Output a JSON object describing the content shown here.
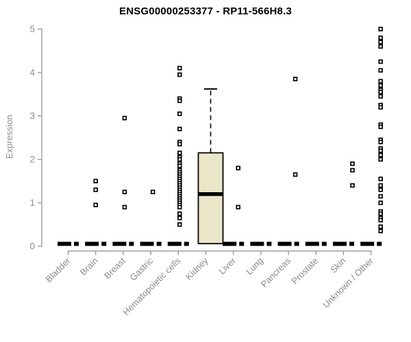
{
  "chart_data": {
    "type": "boxplot",
    "title": "ENSG00000253377 - RP11-566H8.3",
    "ylabel": "Expression",
    "ylim": [
      0,
      5
    ],
    "yticks": [
      0,
      1,
      2,
      3,
      4,
      5
    ],
    "grid": false,
    "legend": false,
    "colors": {
      "box_fill": "#ece6c9",
      "box_stroke": "#000000",
      "median": "#000000",
      "point_stroke": "#000000",
      "point_fill": "#ffffff",
      "zero_dash": "#000000",
      "axis": "#8c8c8c",
      "tick_label": "#8c8c8c",
      "category_label": "#8a8a8a",
      "title": "#000000"
    },
    "categories": [
      {
        "label": "Bladder",
        "dx": 0,
        "zero_dash": true,
        "points": []
      },
      {
        "label": "Brain",
        "dx": 0,
        "zero_dash": true,
        "points": [
          1.5,
          1.3,
          0.95
        ]
      },
      {
        "label": "Breast",
        "dx": 2,
        "zero_dash": true,
        "points": [
          2.95,
          1.25,
          0.9
        ]
      },
      {
        "label": "Gastric",
        "dx": 3,
        "zero_dash": true,
        "points": [
          1.25
        ]
      },
      {
        "label": "Hematopoietic cells",
        "dx": 2,
        "zero_dash": true,
        "points": [
          4.1,
          3.95,
          3.4,
          3.35,
          3.05,
          2.7,
          2.4,
          2.35,
          2.15,
          2.05,
          2.0,
          1.9,
          1.85,
          1.75,
          1.7,
          1.65,
          1.6,
          1.55,
          1.5,
          1.45,
          1.4,
          1.35,
          1.3,
          1.25,
          1.2,
          1.15,
          1.1,
          1.05,
          1.0,
          0.95,
          0.9,
          0.75,
          0.65,
          0.5
        ]
      },
      {
        "label": "Kidney",
        "dx": 7,
        "zero_dash": false,
        "points": [],
        "box": {
          "q1": 0.06,
          "median": 1.2,
          "q3": 2.15,
          "whisker_high": 3.62
        }
      },
      {
        "label": "Liver",
        "dx": 7,
        "zero_dash": true,
        "points": [
          1.8,
          0.9
        ]
      },
      {
        "label": "Lung",
        "dx": 0,
        "zero_dash": true,
        "points": []
      },
      {
        "label": "Pancreas",
        "dx": 10,
        "zero_dash": true,
        "points": [
          3.85,
          1.65
        ]
      },
      {
        "label": "Prostate",
        "dx": 0,
        "zero_dash": true,
        "points": []
      },
      {
        "label": "Skin",
        "dx": 13,
        "zero_dash": true,
        "points": [
          1.9,
          1.75,
          1.4
        ]
      },
      {
        "label": "Unknown / Other",
        "dx": 14,
        "zero_dash": true,
        "points": [
          5.0,
          4.8,
          4.7,
          4.6,
          4.25,
          4.05,
          3.8,
          3.7,
          3.6,
          3.55,
          3.45,
          3.25,
          3.2,
          2.8,
          2.75,
          2.45,
          2.4,
          2.25,
          2.2,
          2.1,
          2.0,
          1.55,
          1.4,
          1.3,
          1.15,
          1.0,
          0.8,
          0.75,
          0.65,
          0.6,
          0.45,
          0.35
        ]
      }
    ]
  }
}
